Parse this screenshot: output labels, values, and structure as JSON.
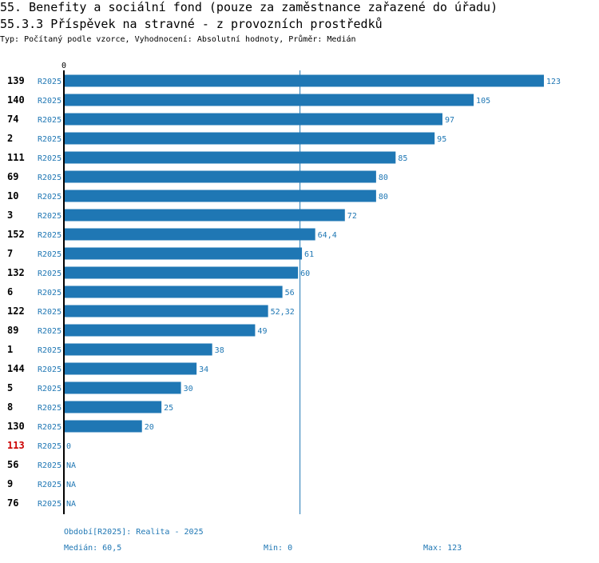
{
  "header": {
    "title": "55. Benefity a sociální fond (pouze za zaměstnance zařazené do úřadu)",
    "subtitle": "55.3.3 Příspěvek na stravné - z provozních prostředků",
    "description": "Typ: Počítaný podle vzorce, Vyhodnocení: Absolutní hodnoty, Průměr: Medián"
  },
  "colors": {
    "bar": "#1f77b4",
    "label": "#1f77b4",
    "id": "#000000",
    "highlight": "#cc0000"
  },
  "chart_data": {
    "type": "bar",
    "orientation": "horizontal",
    "axis_zero_label": "0",
    "xlim": [
      0,
      123
    ],
    "median": 60.5,
    "rows": [
      {
        "id": "139",
        "period": "R2025",
        "value": 123,
        "label": "123",
        "highlight": false
      },
      {
        "id": "140",
        "period": "R2025",
        "value": 105,
        "label": "105",
        "highlight": false
      },
      {
        "id": "74",
        "period": "R2025",
        "value": 97,
        "label": "97",
        "highlight": false
      },
      {
        "id": "2",
        "period": "R2025",
        "value": 95,
        "label": "95",
        "highlight": false
      },
      {
        "id": "111",
        "period": "R2025",
        "value": 85,
        "label": "85",
        "highlight": false
      },
      {
        "id": "69",
        "period": "R2025",
        "value": 80,
        "label": "80",
        "highlight": false
      },
      {
        "id": "10",
        "period": "R2025",
        "value": 80,
        "label": "80",
        "highlight": false
      },
      {
        "id": "3",
        "period": "R2025",
        "value": 72,
        "label": "72",
        "highlight": false
      },
      {
        "id": "152",
        "period": "R2025",
        "value": 64.4,
        "label": "64,4",
        "highlight": false
      },
      {
        "id": "7",
        "period": "R2025",
        "value": 61,
        "label": "61",
        "highlight": false
      },
      {
        "id": "132",
        "period": "R2025",
        "value": 60,
        "label": "60",
        "highlight": false
      },
      {
        "id": "6",
        "period": "R2025",
        "value": 56,
        "label": "56",
        "highlight": false
      },
      {
        "id": "122",
        "period": "R2025",
        "value": 52.32,
        "label": "52,32",
        "highlight": false
      },
      {
        "id": "89",
        "period": "R2025",
        "value": 49,
        "label": "49",
        "highlight": false
      },
      {
        "id": "1",
        "period": "R2025",
        "value": 38,
        "label": "38",
        "highlight": false
      },
      {
        "id": "144",
        "period": "R2025",
        "value": 34,
        "label": "34",
        "highlight": false
      },
      {
        "id": "5",
        "period": "R2025",
        "value": 30,
        "label": "30",
        "highlight": false
      },
      {
        "id": "8",
        "period": "R2025",
        "value": 25,
        "label": "25",
        "highlight": false
      },
      {
        "id": "130",
        "period": "R2025",
        "value": 20,
        "label": "20",
        "highlight": false
      },
      {
        "id": "113",
        "period": "R2025",
        "value": 0,
        "label": "0",
        "highlight": true
      },
      {
        "id": "56",
        "period": "R2025",
        "value": null,
        "label": "NA",
        "highlight": false
      },
      {
        "id": "9",
        "period": "R2025",
        "value": null,
        "label": "NA",
        "highlight": false
      },
      {
        "id": "76",
        "period": "R2025",
        "value": null,
        "label": "NA",
        "highlight": false
      }
    ]
  },
  "footer": {
    "period": "Období[R2025]: Realita - 2025",
    "median": "Medián: 60,5",
    "min": "Min: 0",
    "max": "Max: 123"
  }
}
